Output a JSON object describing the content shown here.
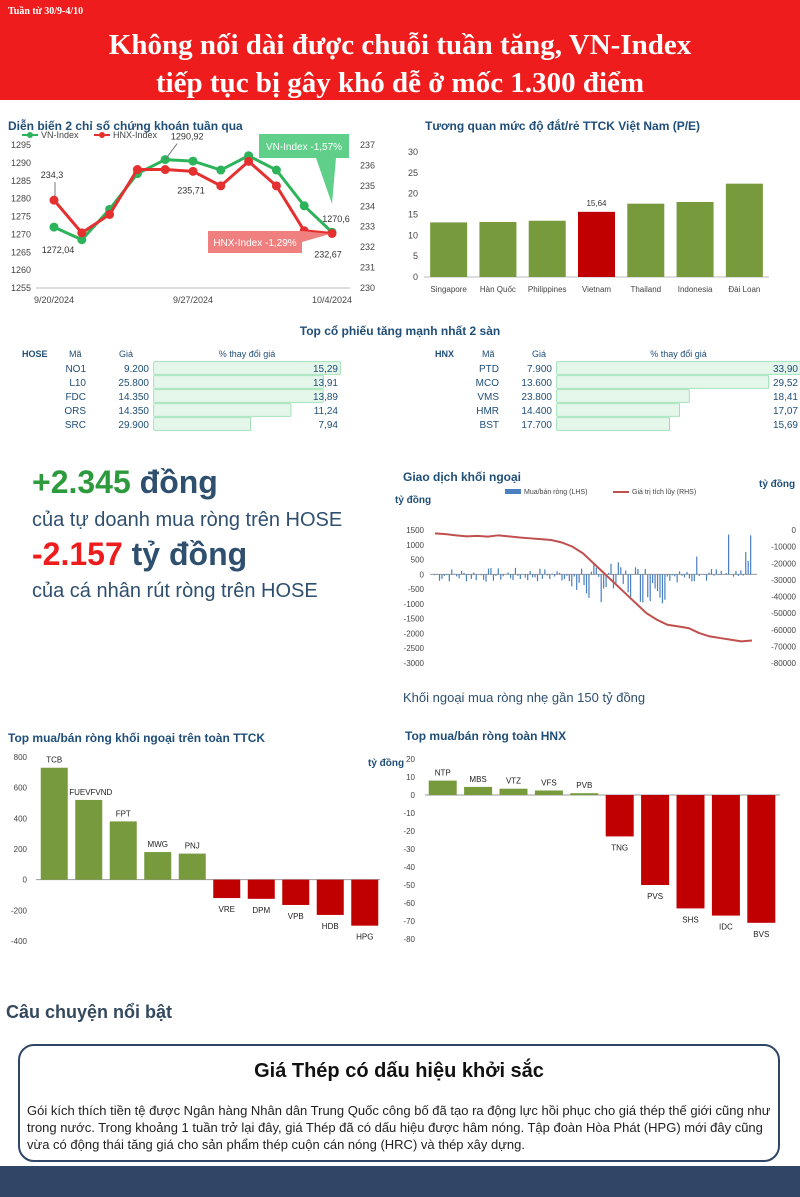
{
  "header": {
    "week": "Tuần từ 30/9-4/10",
    "title_line1": "Không nối dài được chuỗi tuần tăng, VN-Index",
    "title_line2": "tiếp tục bị gây khó dễ ở mốc 1.300 điểm"
  },
  "colors": {
    "red": "#ee1c1c",
    "green": "#769a3c",
    "dark_red": "#c00000",
    "navy": "#1f4e79",
    "vn_green": "#2db35a",
    "hnx_red": "#e53030"
  },
  "chart_data": [
    {
      "type": "line",
      "title": "Diễn biến 2 chỉ số chứng khoán tuần qua",
      "x_ticks": [
        "9/20/2024",
        "9/27/2024",
        "10/4/2024"
      ],
      "series": [
        {
          "name": "VN-Index",
          "axis": "left",
          "values": [
            1272.04,
            1268.5,
            1277,
            1287,
            1290.92,
            1290.5,
            1288,
            1292,
            1288,
            1278,
            1270.6
          ]
        },
        {
          "name": "HNX-Index",
          "axis": "right",
          "values": [
            234.3,
            232.7,
            233.6,
            235.8,
            235.8,
            235.71,
            235,
            236.2,
            235,
            232.8,
            232.67
          ]
        }
      ],
      "ylim_left": [
        1255,
        1295
      ],
      "ylim_right": [
        230,
        237
      ],
      "left_ticks": [
        "1295",
        "1290",
        "1285",
        "1280",
        "1275",
        "1270",
        "1265",
        "1260",
        "1255"
      ],
      "right_ticks": [
        "237",
        "236",
        "235",
        "234",
        "233",
        "232",
        "231",
        "230"
      ],
      "data_labels": [
        "234,3",
        "1272,04",
        "1290,92",
        "235,71",
        "1270,6",
        "232,67"
      ],
      "callouts": [
        "VN-Index -1,57%",
        "HNX-Index -1,29%"
      ]
    },
    {
      "type": "bar",
      "title": "Tương quan mức độ đắt/rẻ TTCK Việt Nam (P/E)",
      "categories": [
        "Singapore",
        "Hàn Quốc",
        "Philippines",
        "Vietnam",
        "Thailand",
        "Indonesia",
        "Đài Loan"
      ],
      "values": [
        13.1,
        13.2,
        13.5,
        15.64,
        17.6,
        18.0,
        22.4
      ],
      "highlight": "Vietnam",
      "highlight_label": "15,64",
      "ylim": [
        0,
        30
      ],
      "ticks": [
        "0",
        "5",
        "10",
        "15",
        "20",
        "25",
        "30"
      ]
    },
    {
      "type": "table",
      "title": "Top cổ phiếu tăng mạnh nhất 2 sàn",
      "hose": {
        "exchange": "HOSE",
        "col_code": "Mã",
        "col_price": "Giá",
        "col_change": "% thay đổi giá",
        "rows": [
          {
            "code": "NO1",
            "price": "9.200",
            "change": 15.29,
            "change_label": "15,29"
          },
          {
            "code": "L10",
            "price": "25.800",
            "change": 13.91,
            "change_label": "13,91"
          },
          {
            "code": "FDC",
            "price": "14.350",
            "change": 13.89,
            "change_label": "13,89"
          },
          {
            "code": "ORS",
            "price": "14.350",
            "change": 11.24,
            "change_label": "11,24"
          },
          {
            "code": "SRC",
            "price": "29.900",
            "change": 7.94,
            "change_label": "7,94"
          }
        ]
      },
      "hnx": {
        "exchange": "HNX",
        "col_code": "Mã",
        "col_price": "Giá",
        "col_change": "% thay đổi giá",
        "rows": [
          {
            "code": "PTD",
            "price": "7.900",
            "change": 33.9,
            "change_label": "33,90"
          },
          {
            "code": "MCO",
            "price": "13.600",
            "change": 29.52,
            "change_label": "29,52"
          },
          {
            "code": "VMS",
            "price": "23.800",
            "change": 18.41,
            "change_label": "18,41"
          },
          {
            "code": "HMR",
            "price": "14.400",
            "change": 17.07,
            "change_label": "17,07"
          },
          {
            "code": "BST",
            "price": "17.700",
            "change": 15.69,
            "change_label": "15,69"
          }
        ]
      }
    },
    {
      "type": "bar",
      "title": "Giao dịch khối ngoại",
      "series": [
        {
          "name": "Mua/bán ròng (LHS)"
        },
        {
          "name": "Giá trị tích lũy (RHS)",
          "values": [
            -2000,
            -2500,
            -3200,
            -3800,
            -3500,
            -4000,
            -3200,
            -3800,
            -4500,
            -5000,
            -5500,
            -6000,
            -7500,
            -10000,
            -14000,
            -20000,
            -26000,
            -32000,
            -38000,
            -44000,
            -50000,
            -54000,
            -57000,
            -58000,
            -59000,
            -62000,
            -64000,
            -65000,
            -66000,
            -67000,
            -66500
          ]
        }
      ],
      "ylabel_left": "tỷ đồng",
      "ylabel_right": "tỷ đồng",
      "left_ticks": [
        "1500",
        "1000",
        "500",
        "0",
        "-500",
        "-1000",
        "-1500",
        "-2000",
        "-2500",
        "-3000"
      ],
      "right_ticks": [
        "0",
        "-10000",
        "-20000",
        "-30000",
        "-40000",
        "-50000",
        "-60000",
        "-70000",
        "-80000"
      ],
      "ylim_left": [
        -3000,
        1500
      ],
      "ylim_right": [
        -80000,
        0
      ],
      "note": "Khối ngoại mua ròng nhẹ gần 150 tỷ đồng"
    },
    {
      "type": "bar",
      "title": "Top mua/bán ròng khối ngoại trên toàn TTCK",
      "categories": [
        "TCB",
        "FUEVFVND",
        "FPT",
        "MWG",
        "PNJ",
        "VRE",
        "DPM",
        "VPB",
        "HDB",
        "HPG"
      ],
      "values": [
        730,
        520,
        380,
        180,
        170,
        -120,
        -125,
        -165,
        -230,
        -300
      ],
      "ylim": [
        -400,
        800
      ],
      "ticks": [
        "800",
        "600",
        "400",
        "200",
        "0",
        "-200",
        "-400"
      ],
      "ylabel": "tỷ đồng"
    },
    {
      "type": "bar",
      "title": "Top mua/bán ròng toàn HNX",
      "categories": [
        "NTP",
        "MBS",
        "VTZ",
        "VFS",
        "PVB",
        "TNG",
        "PVS",
        "SHS",
        "IDC",
        "BVS"
      ],
      "values": [
        8,
        4.5,
        3.5,
        2.5,
        1,
        -23,
        -50,
        -63,
        -67,
        -71
      ],
      "ylim": [
        -80,
        20
      ],
      "ticks": [
        "20",
        "10",
        "0",
        "-10",
        "-20",
        "-30",
        "-40",
        "-50",
        "-60",
        "-70",
        "-80"
      ]
    }
  ],
  "highlights": {
    "line1_value": "+2.345",
    "line1_unit": "đồng",
    "line1_desc": "của tự doanh mua ròng trên HOSE",
    "line2_value": "-2.157",
    "line2_unit": "tỷ đồng",
    "line2_desc": "của cá nhân rút ròng trên HOSE"
  },
  "story": {
    "section_title": "Câu chuyện nổi bật",
    "title": "Giá Thép có dấu hiệu khởi sắc",
    "body": "Gói kích thích tiền tệ được Ngân hàng Nhân dân Trung Quốc công bố đã tạo ra động lực hồi phục cho giá thép thế giới cũng như trong nước. Trong khoảng 1 tuần trở lại đây, giá Thép đã có dấu hiệu được hâm nóng. Tập đoàn Hòa Phát (HPG) mới đây cũng vừa có động thái tăng giá cho sản phẩm thép cuộn cán nóng (HRC) và thép xây dựng."
  }
}
